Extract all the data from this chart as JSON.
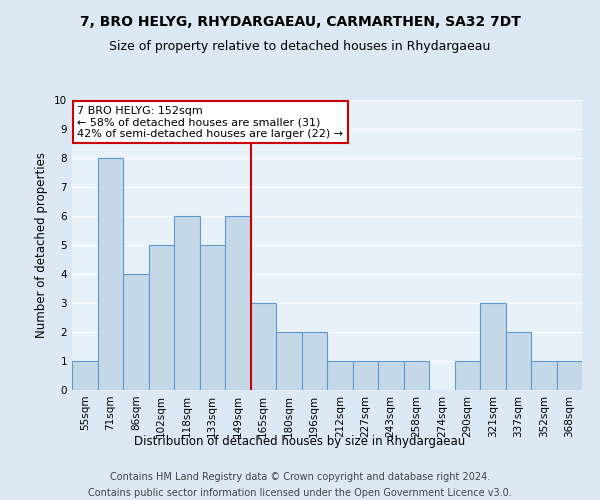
{
  "title": "7, BRO HELYG, RHYDARGAEAU, CARMARTHEN, SA32 7DT",
  "subtitle": "Size of property relative to detached houses in Rhydargaeau",
  "xlabel": "Distribution of detached houses by size in Rhydargaeau",
  "ylabel": "Number of detached properties",
  "footnote1": "Contains HM Land Registry data © Crown copyright and database right 2024.",
  "footnote2": "Contains public sector information licensed under the Open Government Licence v3.0.",
  "categories": [
    "55sqm",
    "71sqm",
    "86sqm",
    "102sqm",
    "118sqm",
    "133sqm",
    "149sqm",
    "165sqm",
    "180sqm",
    "196sqm",
    "212sqm",
    "227sqm",
    "243sqm",
    "258sqm",
    "274sqm",
    "290sqm",
    "321sqm",
    "337sqm",
    "352sqm",
    "368sqm"
  ],
  "values": [
    1,
    8,
    4,
    5,
    6,
    5,
    6,
    3,
    2,
    2,
    1,
    1,
    1,
    1,
    0,
    1,
    3,
    2,
    1,
    1
  ],
  "bar_color": "#c5d8e8",
  "bar_edge_color": "#5b9bd5",
  "ylim": [
    0,
    10
  ],
  "yticks": [
    0,
    1,
    2,
    3,
    4,
    5,
    6,
    7,
    8,
    9,
    10
  ],
  "property_label": "7 BRO HELYG: 152sqm",
  "annotation_line1": "← 58% of detached houses are smaller (31)",
  "annotation_line2": "42% of semi-detached houses are larger (22) →",
  "vline_x_index": 6.5,
  "background_color": "#dce9f5",
  "plot_bg_color": "#e8f0f8",
  "grid_color": "#ffffff",
  "annotation_box_color": "#ffffff",
  "annotation_box_edge": "#cc0000",
  "vline_color": "#cc0000",
  "title_fontsize": 10,
  "subtitle_fontsize": 9,
  "axis_label_fontsize": 8.5,
  "tick_fontsize": 7.5,
  "annotation_fontsize": 8,
  "footnote_fontsize": 7
}
